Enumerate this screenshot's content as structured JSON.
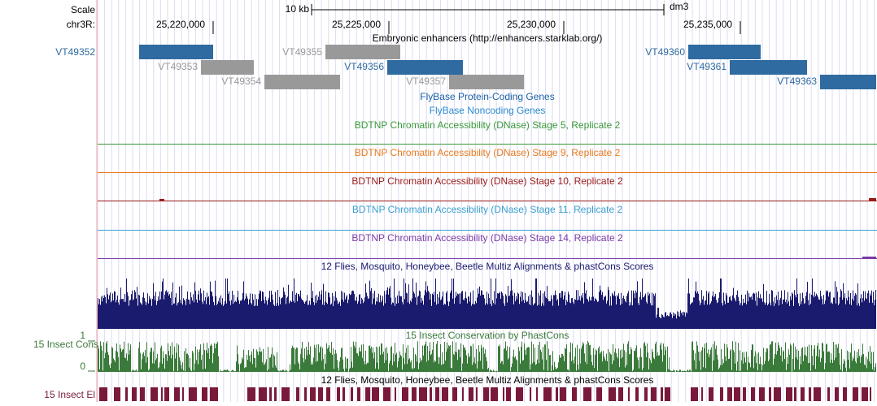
{
  "scale": {
    "label": "Scale",
    "bar_text": "10 kb",
    "assembly": "dm3"
  },
  "position": {
    "chrom_label": "chr3R:",
    "ticks": [
      "25,220,000",
      "25,225,000",
      "25,230,000",
      "25,235,000"
    ]
  },
  "tracks": {
    "enhancers": {
      "title": "Embryonic enhancers (http://enhancers.starklab.org/)",
      "side_label": "VT49352",
      "items": [
        {
          "name": "VT49352",
          "color": "#2f6aa0"
        },
        {
          "name": "VT49353",
          "color": "#999999"
        },
        {
          "name": "VT49354",
          "color": "#999999"
        },
        {
          "name": "VT49355",
          "color": "#999999"
        },
        {
          "name": "VT49356",
          "color": "#2f6aa0"
        },
        {
          "name": "VT49357",
          "color": "#999999"
        },
        {
          "name": "VT49360",
          "color": "#2f6aa0"
        },
        {
          "name": "VT49361",
          "color": "#2f6aa0"
        },
        {
          "name": "VT49363",
          "color": "#2f6aa0"
        }
      ]
    },
    "flybase_coding": {
      "title": "FlyBase Protein-Coding Genes",
      "color": "#1a5fa8"
    },
    "flybase_noncoding": {
      "title": "FlyBase Noncoding Genes",
      "color": "#2a8ad0"
    },
    "dnase": [
      {
        "title": "BDTNP Chromatin Accessibility (DNase) Stage 5, Replicate 2",
        "color": "#3a9a3a"
      },
      {
        "title": "BDTNP Chromatin Accessibility (DNase) Stage 9, Replicate 2",
        "color": "#e87a20"
      },
      {
        "title": "BDTNP Chromatin Accessibility (DNase) Stage 10, Replicate 2",
        "color": "#9a1a1a"
      },
      {
        "title": "BDTNP Chromatin Accessibility (DNase) Stage 11, Replicate 2",
        "color": "#3aa0d0"
      },
      {
        "title": "BDTNP Chromatin Accessibility (DNase) Stage 14, Replicate 2",
        "color": "#7a3aa8"
      }
    ],
    "multiz": {
      "title": "12 Flies, Mosquito, Honeybee, Beetle Multiz Alignments & phastCons Scores",
      "color": "#1a1a6e"
    },
    "phastcons": {
      "title": "15 Insect Conservation by PhastCons",
      "side_label": "15 Insect Cons",
      "y_max": "1",
      "y_min": "0",
      "color": "#3a7a3a"
    },
    "elements": {
      "title": "12 Flies, Mosquito, Honeybee, Beetle Multiz Alignments & phastCons Scores",
      "side_label": "15 Insect El",
      "color": "#7a1a3a"
    }
  }
}
